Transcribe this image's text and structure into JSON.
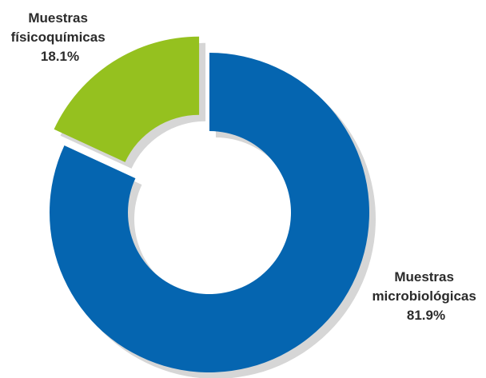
{
  "chart_data": {
    "type": "pie",
    "variant": "donut",
    "exploded_slice": "Muestras fisicoquímicas",
    "slices": [
      {
        "name": "Muestras microbiológicas",
        "value": 81.9,
        "color": "#0565b0",
        "label_lines": [
          "Muestras",
          "microbiológicas",
          "81.9%"
        ]
      },
      {
        "name": "Muestras fisicoquímicas",
        "value": 18.1,
        "color": "#95c11f",
        "label_lines": [
          "Muestras",
          "físicoquímicas",
          "18.1%"
        ]
      }
    ],
    "shadow_color": "#d6d6d6"
  }
}
